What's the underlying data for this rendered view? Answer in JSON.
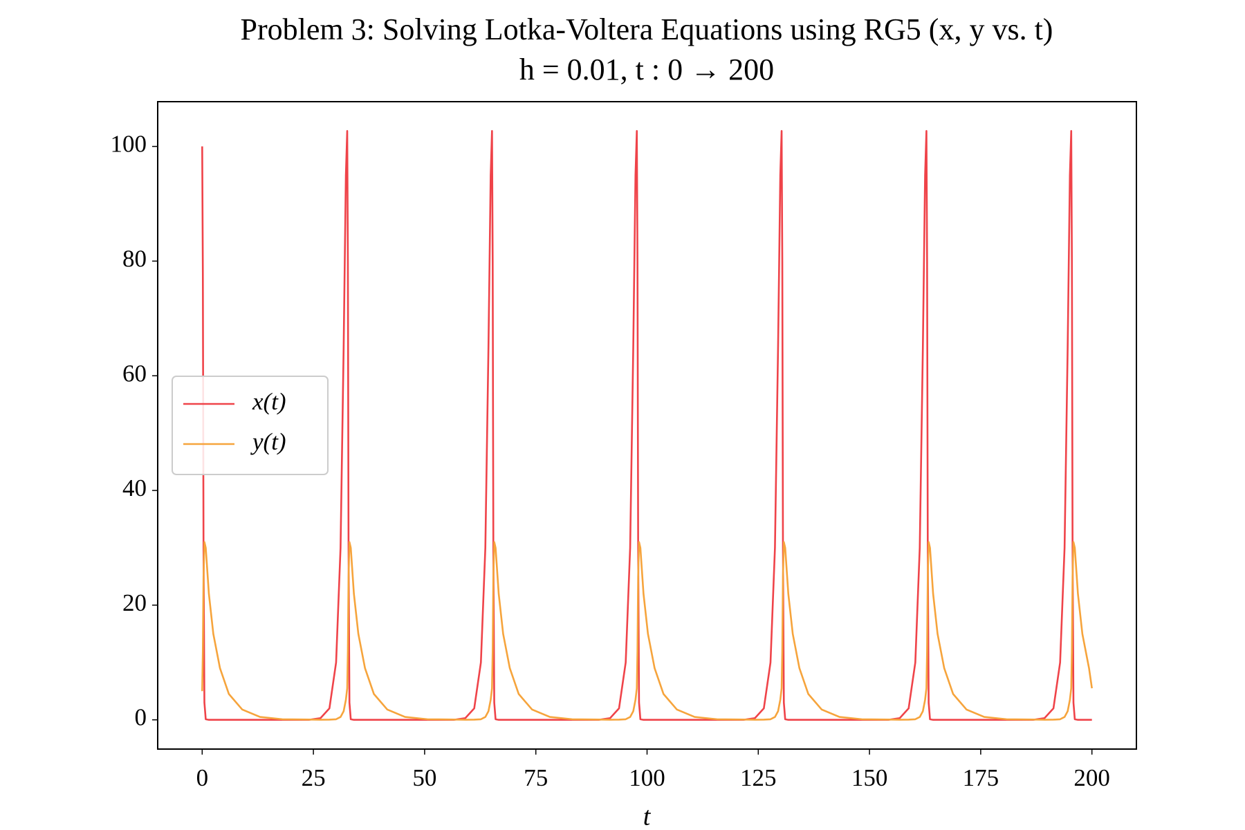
{
  "chart_data": {
    "type": "line",
    "title": "Problem 3: Solving Lotka-Voltera Equations using RG5 (x, y vs. t)",
    "subtitle": "h = 0.01, t : 0 → 200",
    "xlabel": "t",
    "x": [
      0,
      0.15,
      0.3,
      0.5,
      0.8,
      1.5,
      2.5,
      4,
      6,
      9,
      13,
      18,
      24,
      26.6,
      28.6,
      30.1,
      31.1,
      31.8,
      32.3,
      32.6,
      32.75,
      32.9,
      33.1,
      33.4,
      34.1,
      35.1,
      36.6,
      38.6,
      41.6,
      45.6,
      50.6,
      56.6,
      59.15,
      61.15,
      62.65,
      63.65,
      64.35,
      64.85,
      65.15,
      65.3,
      65.45,
      65.65,
      65.95,
      66.65,
      67.65,
      69.15,
      71.15,
      74.15,
      78.15,
      83.15,
      89.15,
      91.7,
      93.7,
      95.2,
      96.2,
      96.9,
      97.4,
      97.7,
      97.85,
      98,
      98.2,
      98.5,
      99.2,
      100.2,
      101.7,
      103.7,
      106.7,
      110.7,
      115.7,
      121.7,
      124.25,
      126.25,
      127.75,
      128.75,
      129.45,
      129.95,
      130.25,
      130.4,
      130.55,
      130.75,
      131.05,
      131.75,
      132.75,
      134.25,
      136.25,
      139.25,
      143.25,
      148.25,
      154.25,
      156.8,
      158.8,
      160.3,
      161.3,
      162,
      162.5,
      162.8,
      162.95,
      163.1,
      163.3,
      163.6,
      164.3,
      165.3,
      166.8,
      168.8,
      171.8,
      175.8,
      180.8,
      186.8,
      189.35,
      191.35,
      192.85,
      193.85,
      194.55,
      195.05,
      195.35,
      195.5,
      195.65,
      195.85,
      196.15,
      196.85,
      197.85,
      199.35,
      200
    ],
    "series": [
      {
        "name": "x(t)",
        "color": "#ef4349",
        "values": [
          100,
          78,
          30,
          3,
          0.1,
          0,
          0,
          0,
          0,
          0,
          0,
          0,
          0,
          0.3,
          2,
          10,
          30,
          65,
          95,
          102.7,
          80,
          30,
          3,
          0.1,
          0,
          0,
          0,
          0,
          0,
          0,
          0,
          0,
          0.3,
          2,
          10,
          30,
          65,
          95,
          102.7,
          80,
          30,
          3,
          0.1,
          0,
          0,
          0,
          0,
          0,
          0,
          0,
          0,
          0.3,
          2,
          10,
          30,
          65,
          95,
          102.7,
          80,
          30,
          3,
          0.1,
          0,
          0,
          0,
          0,
          0,
          0,
          0,
          0,
          0.3,
          2,
          10,
          30,
          65,
          95,
          102.7,
          80,
          30,
          3,
          0.1,
          0,
          0,
          0,
          0,
          0,
          0,
          0,
          0,
          0.3,
          2,
          10,
          30,
          65,
          95,
          102.7,
          80,
          30,
          3,
          0.1,
          0,
          0,
          0,
          0,
          0,
          0,
          0,
          0,
          0.3,
          2,
          10,
          30,
          65,
          95,
          102.7,
          80,
          30,
          3,
          0.1,
          0,
          0,
          0,
          0
        ]
      },
      {
        "name": "y(t)",
        "color": "#f6a43c",
        "values": [
          5,
          12,
          25,
          31,
          30,
          22,
          15,
          9,
          4.5,
          1.8,
          0.5,
          0.1,
          0.05,
          0.02,
          0.03,
          0.1,
          0.5,
          1.5,
          3.5,
          5.5,
          12,
          25,
          31,
          30,
          22,
          15,
          9,
          4.5,
          1.8,
          0.5,
          0.1,
          0.05,
          0.02,
          0.03,
          0.1,
          0.5,
          1.5,
          3.5,
          5.5,
          12,
          25,
          31,
          30,
          22,
          15,
          9,
          4.5,
          1.8,
          0.5,
          0.1,
          0.05,
          0.02,
          0.03,
          0.1,
          0.5,
          1.5,
          3.5,
          5.5,
          12,
          25,
          31,
          30,
          22,
          15,
          9,
          4.5,
          1.8,
          0.5,
          0.1,
          0.05,
          0.02,
          0.03,
          0.1,
          0.5,
          1.5,
          3.5,
          5.5,
          12,
          25,
          31,
          30,
          22,
          15,
          9,
          4.5,
          1.8,
          0.5,
          0.1,
          0.05,
          0.02,
          0.03,
          0.1,
          0.5,
          1.5,
          3.5,
          5.5,
          12,
          25,
          31,
          30,
          22,
          15,
          9,
          4.5,
          1.8,
          0.5,
          0.1,
          0.05,
          0.02,
          0.03,
          0.1,
          0.5,
          1.5,
          3.5,
          5.5,
          12,
          25,
          31,
          30,
          22,
          15,
          9,
          5.5
        ]
      }
    ],
    "xlim": [
      -10,
      210
    ],
    "xticks": [
      0,
      25,
      50,
      75,
      100,
      125,
      150,
      175,
      200
    ],
    "ylim": [
      -5.1,
      107.8
    ],
    "yticks": [
      0,
      20,
      40,
      60,
      80,
      100
    ],
    "grid": false,
    "legend": "center left"
  }
}
